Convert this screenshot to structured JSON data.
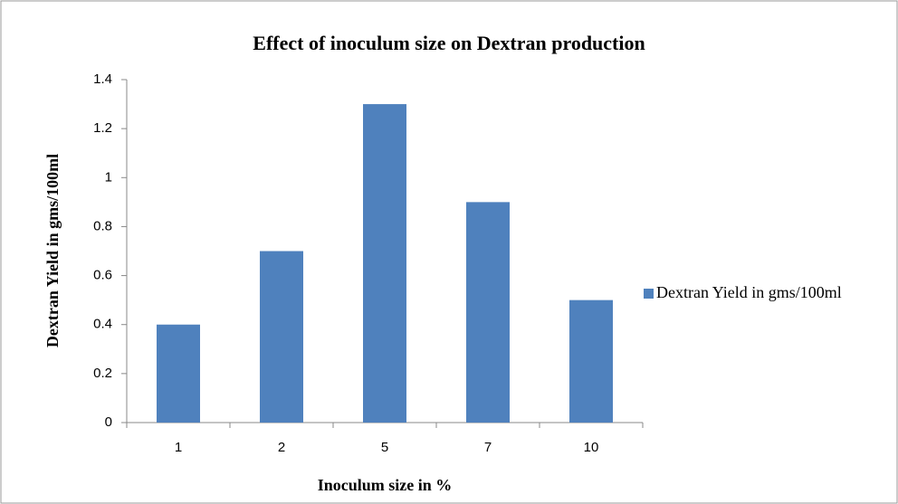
{
  "chart_data": {
    "type": "bar",
    "title": "Effect of inoculum size on Dextran production",
    "x_label": "Inoculum size in %",
    "y_label": "Dextran Yield in gms/100ml",
    "categories": [
      "1",
      "2",
      "5",
      "7",
      "10"
    ],
    "series": [
      {
        "name": "Dextran Yield in gms/100ml",
        "color": "#4f81bd",
        "values": [
          0.4,
          0.7,
          1.3,
          0.9,
          0.5
        ]
      }
    ],
    "ylim": [
      0,
      1.4
    ],
    "yticks": [
      0,
      0.2,
      0.4,
      0.6,
      0.8,
      1,
      1.2,
      1.4
    ],
    "grid": false,
    "legend": "right"
  }
}
